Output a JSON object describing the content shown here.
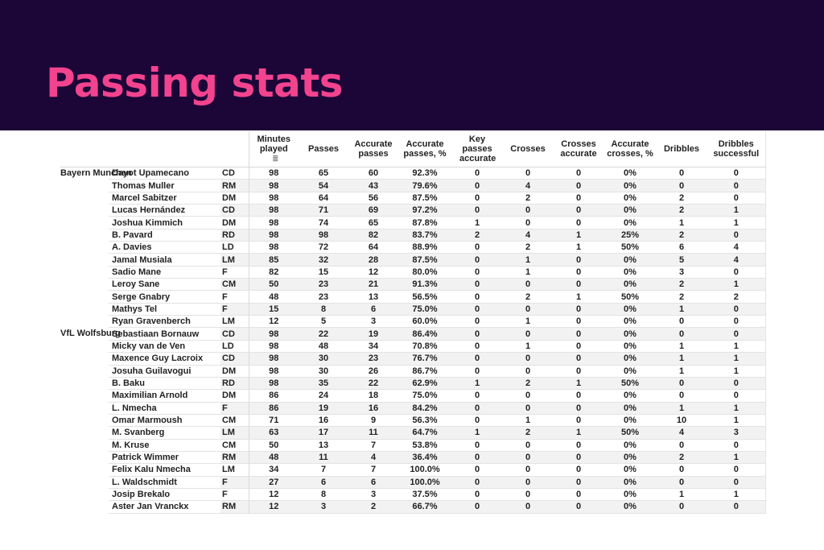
{
  "header": {
    "title": "Passing stats"
  },
  "colors": {
    "banner": "#1c0638",
    "title": "#f2438f",
    "stripe": "#f2f2f2"
  },
  "table": {
    "columns": [
      "Minutes played",
      "Passes",
      "Accurate passes",
      "Accurate passes, %",
      "Key passes accurate",
      "Crosses",
      "Crosses accurate",
      "Accurate crosses, %",
      "Dribbles",
      "Dribbles successful"
    ],
    "sort_column_icon": "sort-icon",
    "teams": [
      {
        "name": "Bayern Munchen",
        "players": [
          [
            "Dayot Upamecano",
            "CD",
            "98",
            "65",
            "60",
            "92.3%",
            "0",
            "0",
            "0",
            "0%",
            "0",
            "0"
          ],
          [
            "Thomas Muller",
            "RM",
            "98",
            "54",
            "43",
            "79.6%",
            "0",
            "4",
            "0",
            "0%",
            "0",
            "0"
          ],
          [
            "Marcel Sabitzer",
            "DM",
            "98",
            "64",
            "56",
            "87.5%",
            "0",
            "2",
            "0",
            "0%",
            "2",
            "0"
          ],
          [
            "Lucas Hernández",
            "CD",
            "98",
            "71",
            "69",
            "97.2%",
            "0",
            "0",
            "0",
            "0%",
            "2",
            "1"
          ],
          [
            "Joshua Kimmich",
            "DM",
            "98",
            "74",
            "65",
            "87.8%",
            "1",
            "0",
            "0",
            "0%",
            "1",
            "1"
          ],
          [
            "B. Pavard",
            "RD",
            "98",
            "98",
            "82",
            "83.7%",
            "2",
            "4",
            "1",
            "25%",
            "2",
            "0"
          ],
          [
            "A. Davies",
            "LD",
            "98",
            "72",
            "64",
            "88.9%",
            "0",
            "2",
            "1",
            "50%",
            "6",
            "4"
          ],
          [
            "Jamal Musiala",
            "LM",
            "85",
            "32",
            "28",
            "87.5%",
            "0",
            "1",
            "0",
            "0%",
            "5",
            "4"
          ],
          [
            "Sadio Mane",
            "F",
            "82",
            "15",
            "12",
            "80.0%",
            "0",
            "1",
            "0",
            "0%",
            "3",
            "0"
          ],
          [
            "Leroy Sane",
            "CM",
            "50",
            "23",
            "21",
            "91.3%",
            "0",
            "0",
            "0",
            "0%",
            "2",
            "1"
          ],
          [
            "Serge Gnabry",
            "F",
            "48",
            "23",
            "13",
            "56.5%",
            "0",
            "2",
            "1",
            "50%",
            "2",
            "2"
          ],
          [
            "Mathys Tel",
            "F",
            "15",
            "8",
            "6",
            "75.0%",
            "0",
            "0",
            "0",
            "0%",
            "1",
            "0"
          ],
          [
            "Ryan Gravenberch",
            "LM",
            "12",
            "5",
            "3",
            "60.0%",
            "0",
            "1",
            "0",
            "0%",
            "0",
            "0"
          ]
        ]
      },
      {
        "name": "VfL Wolfsburg",
        "players": [
          [
            "Sebastiaan Bornauw",
            "CD",
            "98",
            "22",
            "19",
            "86.4%",
            "0",
            "0",
            "0",
            "0%",
            "0",
            "0"
          ],
          [
            "Micky van de Ven",
            "LD",
            "98",
            "48",
            "34",
            "70.8%",
            "0",
            "1",
            "0",
            "0%",
            "1",
            "1"
          ],
          [
            "Maxence Guy Lacroix",
            "CD",
            "98",
            "30",
            "23",
            "76.7%",
            "0",
            "0",
            "0",
            "0%",
            "1",
            "1"
          ],
          [
            "Josuha Guilavogui",
            "DM",
            "98",
            "30",
            "26",
            "86.7%",
            "0",
            "0",
            "0",
            "0%",
            "1",
            "1"
          ],
          [
            "B. Baku",
            "RD",
            "98",
            "35",
            "22",
            "62.9%",
            "1",
            "2",
            "1",
            "50%",
            "0",
            "0"
          ],
          [
            "Maximilian Arnold",
            "DM",
            "86",
            "24",
            "18",
            "75.0%",
            "0",
            "0",
            "0",
            "0%",
            "0",
            "0"
          ],
          [
            "L. Nmecha",
            "F",
            "86",
            "19",
            "16",
            "84.2%",
            "0",
            "0",
            "0",
            "0%",
            "1",
            "1"
          ],
          [
            "Omar Marmoush",
            "CM",
            "71",
            "16",
            "9",
            "56.3%",
            "0",
            "1",
            "0",
            "0%",
            "10",
            "1"
          ],
          [
            "M. Svanberg",
            "LM",
            "63",
            "17",
            "11",
            "64.7%",
            "1",
            "2",
            "1",
            "50%",
            "4",
            "3"
          ],
          [
            "M. Kruse",
            "CM",
            "50",
            "13",
            "7",
            "53.8%",
            "0",
            "0",
            "0",
            "0%",
            "0",
            "0"
          ],
          [
            "Patrick Wimmer",
            "RM",
            "48",
            "11",
            "4",
            "36.4%",
            "0",
            "0",
            "0",
            "0%",
            "2",
            "1"
          ],
          [
            "Felix Kalu Nmecha",
            "LM",
            "34",
            "7",
            "7",
            "100.0%",
            "0",
            "0",
            "0",
            "0%",
            "0",
            "0"
          ],
          [
            "L. Waldschmidt",
            "F",
            "27",
            "6",
            "6",
            "100.0%",
            "0",
            "0",
            "0",
            "0%",
            "0",
            "0"
          ],
          [
            "Josip Brekalo",
            "F",
            "12",
            "8",
            "3",
            "37.5%",
            "0",
            "0",
            "0",
            "0%",
            "1",
            "1"
          ],
          [
            "Aster Jan Vranckx",
            "RM",
            "12",
            "3",
            "2",
            "66.7%",
            "0",
            "0",
            "0",
            "0%",
            "0",
            "0"
          ]
        ]
      }
    ]
  }
}
